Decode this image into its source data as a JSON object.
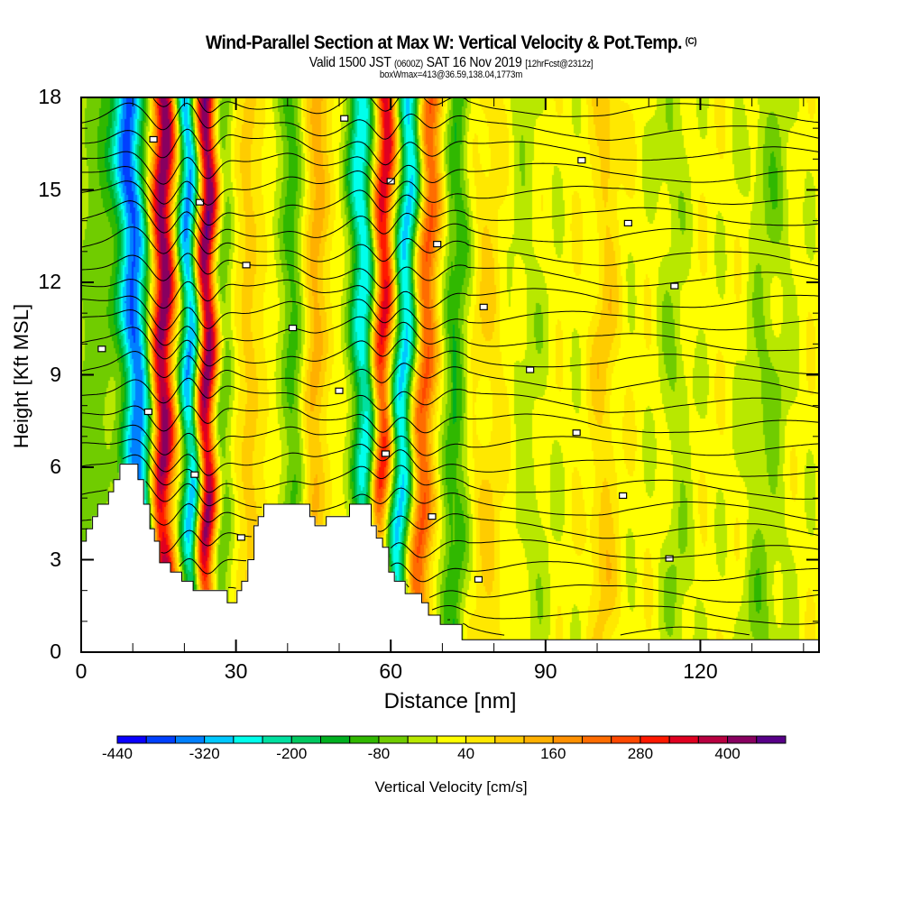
{
  "header": {
    "title": "Wind-Parallel Section at Max W: Vertical Velocity & Pot.Temp.",
    "copyright_mark": "(C)",
    "valid_prefix": "Valid 1500 JST",
    "valid_utc": "(0600Z)",
    "valid_date": "SAT 16 Nov 2019",
    "forecast_tag": "[12hrFcst@2312z]",
    "box_info": "boxWmax=413@36.59,138.04,1773m"
  },
  "chart_data": {
    "type": "heatmap",
    "title": "Wind-Parallel Section at Max W: Vertical Velocity & Pot.Temp.",
    "xlabel": "Distance [nm]",
    "ylabel": "Height [Kft MSL]",
    "xlim": [
      0,
      143
    ],
    "ylim": [
      0,
      18
    ],
    "xticks": [
      0,
      30,
      60,
      90,
      120
    ],
    "yticks": [
      0,
      3,
      6,
      9,
      12,
      15,
      18
    ],
    "x_minor_step": 10,
    "y_minor_step": 1,
    "colorbar": {
      "label": "Vertical Velocity [cm/s]",
      "min": -440,
      "max": 480,
      "step": 40,
      "tick_labels": [
        -440,
        -320,
        -200,
        -80,
        40,
        160,
        280,
        400
      ],
      "colors": [
        "#0a00ff",
        "#0040ff",
        "#0080ff",
        "#00c8ff",
        "#00ffec",
        "#00e0a0",
        "#00c860",
        "#00b020",
        "#30b800",
        "#70cc00",
        "#b8e800",
        "#ffff00",
        "#ffe800",
        "#ffcc00",
        "#ffb000",
        "#ff9000",
        "#ff6c00",
        "#ff4800",
        "#ff1800",
        "#e00020",
        "#b80040",
        "#880060",
        "#580088"
      ]
    },
    "background_w": 20,
    "w_features": [
      {
        "name": "upwind-green-1",
        "x_top": 4,
        "x_bottom": 1,
        "amp": -90,
        "width": 4.0
      },
      {
        "name": "downdraft-1",
        "x_top": 9,
        "x_bottom": 12.5,
        "amp": -380,
        "width": 3.0
      },
      {
        "name": "updraft-1",
        "x_top": 16,
        "x_bottom": 15.5,
        "amp": 420,
        "width": 2.2
      },
      {
        "name": "downdraft-2",
        "x_top": 20.5,
        "x_bottom": 22,
        "amp": -360,
        "width": 2.0
      },
      {
        "name": "updraft-2",
        "x_top": 24.5,
        "x_bottom": 24,
        "amp": 440,
        "width": 2.0
      },
      {
        "name": "downslope-g1",
        "x_top": 27.5,
        "x_bottom": 27,
        "amp": -110,
        "width": 2.2
      },
      {
        "name": "weak-up-1",
        "x_top": 32,
        "x_bottom": 33,
        "amp": 70,
        "width": 3.0
      },
      {
        "name": "weak-down-1",
        "x_top": 40.5,
        "x_bottom": 42,
        "amp": -120,
        "width": 2.5
      },
      {
        "name": "weak-up-2",
        "x_top": 46,
        "x_bottom": 44,
        "amp": 120,
        "width": 2.5
      },
      {
        "name": "downdraft-3",
        "x_top": 54,
        "x_bottom": 56,
        "amp": -300,
        "width": 2.5
      },
      {
        "name": "updraft-3",
        "x_top": 59,
        "x_bottom": 57.5,
        "amp": 340,
        "width": 2.0
      },
      {
        "name": "downdraft-4",
        "x_top": 64,
        "x_bottom": 61,
        "amp": -320,
        "width": 2.2
      },
      {
        "name": "updraft-4",
        "x_top": 68,
        "x_bottom": 65,
        "amp": 230,
        "width": 2.3
      },
      {
        "name": "lee-green",
        "x_top": 73,
        "x_bottom": 72,
        "amp": -130,
        "width": 2.5
      },
      {
        "name": "lee-yellow-1",
        "x_top": 79,
        "x_bottom": 79,
        "amp": 60,
        "width": 3.5
      },
      {
        "name": "lee-green-2",
        "x_top": 85,
        "x_bottom": 88,
        "amp": -40,
        "width": 4.0
      },
      {
        "name": "lee-yellow-2",
        "x_top": 102,
        "x_bottom": 101,
        "amp": 80,
        "width": 2.5
      },
      {
        "name": "lee-green-3",
        "x_top": 114,
        "x_bottom": 116,
        "amp": -55,
        "width": 3.0
      },
      {
        "name": "lee-green-4",
        "x_top": 134,
        "x_bottom": 132,
        "amp": -70,
        "width": 4.0
      }
    ],
    "terrain_kft": [
      [
        0,
        3.6
      ],
      [
        1,
        3.6
      ],
      [
        1,
        4.0
      ],
      [
        2.2,
        4.0
      ],
      [
        2.2,
        4.4
      ],
      [
        3.2,
        4.4
      ],
      [
        3.2,
        4.8
      ],
      [
        5.3,
        4.8
      ],
      [
        5.3,
        5.2
      ],
      [
        6.3,
        5.2
      ],
      [
        6.3,
        5.6
      ],
      [
        7.5,
        5.6
      ],
      [
        7.5,
        6.1
      ],
      [
        8.8,
        6.1
      ],
      [
        8.8,
        6.1
      ],
      [
        10.8,
        6.1
      ],
      [
        10.8,
        6.1
      ],
      [
        11.0,
        6.1
      ],
      [
        11.0,
        5.6
      ],
      [
        12.1,
        5.6
      ],
      [
        12.1,
        4.8
      ],
      [
        13.3,
        4.8
      ],
      [
        13.3,
        4.0
      ],
      [
        14.2,
        4.0
      ],
      [
        14.2,
        3.6
      ],
      [
        15.2,
        3.6
      ],
      [
        15.2,
        2.9
      ],
      [
        17.3,
        2.9
      ],
      [
        17.3,
        2.6
      ],
      [
        19.5,
        2.6
      ],
      [
        19.5,
        2.3
      ],
      [
        21.7,
        2.3
      ],
      [
        21.7,
        2.0
      ],
      [
        28.3,
        2.0
      ],
      [
        28.3,
        1.6
      ],
      [
        30.2,
        1.6
      ],
      [
        30.2,
        2.0
      ],
      [
        31.1,
        2.0
      ],
      [
        31.1,
        2.3
      ],
      [
        32.3,
        2.3
      ],
      [
        32.3,
        3.0
      ],
      [
        33.5,
        3.0
      ],
      [
        33.5,
        4.1
      ],
      [
        34.3,
        4.1
      ],
      [
        34.3,
        4.4
      ],
      [
        35.4,
        4.4
      ],
      [
        35.4,
        4.8
      ],
      [
        38.6,
        4.8
      ],
      [
        38.6,
        4.8
      ],
      [
        44.3,
        4.8
      ],
      [
        44.3,
        4.4
      ],
      [
        45.3,
        4.4
      ],
      [
        45.3,
        4.1
      ],
      [
        47.5,
        4.1
      ],
      [
        47.5,
        4.4
      ],
      [
        52.0,
        4.4
      ],
      [
        52.0,
        4.8
      ],
      [
        56.2,
        4.8
      ],
      [
        56.2,
        4.1
      ],
      [
        57.2,
        4.1
      ],
      [
        57.2,
        3.7
      ],
      [
        58.4,
        3.7
      ],
      [
        58.4,
        3.4
      ],
      [
        59.6,
        3.4
      ],
      [
        59.6,
        2.6
      ],
      [
        60.7,
        2.6
      ],
      [
        60.7,
        2.3
      ],
      [
        62.8,
        2.3
      ],
      [
        62.8,
        1.9
      ],
      [
        66.0,
        1.9
      ],
      [
        66.0,
        1.6
      ],
      [
        67.3,
        1.6
      ],
      [
        67.3,
        1.2
      ],
      [
        69.6,
        1.2
      ],
      [
        69.6,
        0.9
      ],
      [
        73.8,
        0.9
      ],
      [
        73.8,
        0.4
      ],
      [
        143,
        0.4
      ]
    ]
  }
}
